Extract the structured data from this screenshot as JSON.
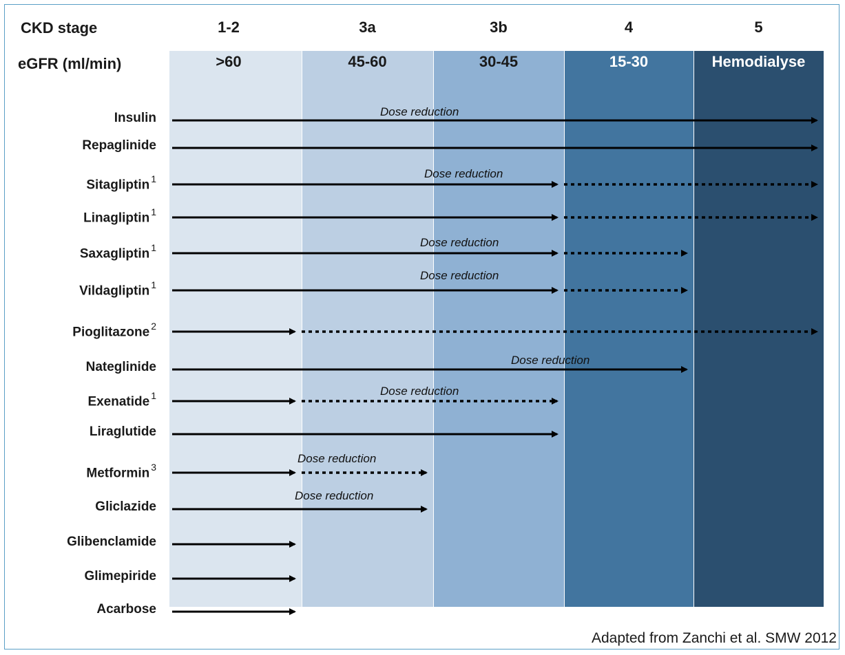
{
  "header": {
    "stage_label": "CKD stage",
    "egfr_label": "eGFR (ml/min)"
  },
  "bands": [
    {
      "stage": "1-2",
      "egfr": ">60",
      "color": "#dbe5ef",
      "egfr_color": "#1a1a1a"
    },
    {
      "stage": "3a",
      "egfr": "45-60",
      "color": "#bccfe3",
      "egfr_color": "#1a1a1a"
    },
    {
      "stage": "3b",
      "egfr": "30-45",
      "color": "#8fb1d3",
      "egfr_color": "#1a1a1a"
    },
    {
      "stage": "4",
      "egfr": "15-30",
      "color": "#42759f",
      "egfr_color": "#ffffff"
    },
    {
      "stage": "5",
      "egfr": "Hemodialyse",
      "color": "#2b4f6f",
      "egfr_color": "#ffffff"
    }
  ],
  "drugs": [
    {
      "name": "Insulin",
      "sup": "",
      "note": "Dose reduction",
      "solid_to": "5",
      "dotted_to": null
    },
    {
      "name": "Repaglinide",
      "sup": "",
      "note": "",
      "solid_to": "5",
      "dotted_to": null
    },
    {
      "name": "Sitagliptin",
      "sup": "1",
      "note": "Dose reduction",
      "solid_to": "3b",
      "dotted_to": "5"
    },
    {
      "name": "Linagliptin",
      "sup": "1",
      "note": "",
      "solid_to": "3b",
      "dotted_to": "5"
    },
    {
      "name": "Saxagliptin",
      "sup": "1",
      "note": "Dose reduction",
      "solid_to": "3b",
      "dotted_to": "4"
    },
    {
      "name": "Vildagliptin",
      "sup": "1",
      "note": "Dose reduction",
      "solid_to": "3b",
      "dotted_to": "4"
    },
    {
      "name": "Pioglitazone",
      "sup": "2",
      "note": "",
      "solid_to": "1-2",
      "dotted_to": "5"
    },
    {
      "name": "Nateglinide",
      "sup": "",
      "note": "Dose reduction",
      "solid_to": "4",
      "dotted_to": null
    },
    {
      "name": "Exenatide",
      "sup": "1",
      "note": "Dose reduction",
      "solid_to": "1-2",
      "dotted_to": "3b"
    },
    {
      "name": "Liraglutide",
      "sup": "",
      "note": "",
      "solid_to": "3b",
      "dotted_to": null
    },
    {
      "name": "Metformin",
      "sup": "3",
      "note": "Dose reduction",
      "solid_to": "1-2",
      "dotted_to": "3a"
    },
    {
      "name": "Gliclazide",
      "sup": "",
      "note": "Dose reduction",
      "solid_to": "3a",
      "dotted_to": null
    },
    {
      "name": "Glibenclamide",
      "sup": "",
      "note": "",
      "solid_to": "1-2",
      "dotted_to": null
    },
    {
      "name": "Glimepiride",
      "sup": "",
      "note": "",
      "solid_to": "1-2",
      "dotted_to": null
    },
    {
      "name": "Acarbose",
      "sup": "",
      "note": "",
      "solid_to": "1-2",
      "dotted_to": null
    }
  ],
  "credit": "Adapted from Zanchi et al. SMW 2012"
}
